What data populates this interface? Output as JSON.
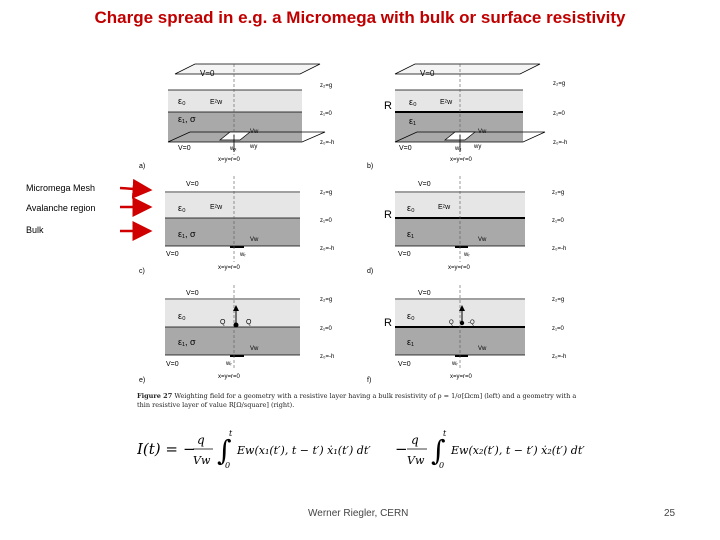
{
  "title": "Charge spread in e.g. a Micromega with bulk or surface resistivity",
  "side_labels": [
    "Micromega Mesh",
    "Avalanche region",
    "Bulk"
  ],
  "footer": {
    "author": "Werner Riegler, CERN",
    "page": "25"
  },
  "caption": {
    "label": "Figure 27",
    "text": "Weighting field for a geometry with a resistive layer having a bulk resistivity of ρ = 1/σ[Ωcm] (left) and a geometry with a thin resistive layer of value R[Ω/square] (right)."
  },
  "panels": {
    "a": {
      "id": "a)",
      "top": "V=0",
      "z2": "z₂=g",
      "eps0": "ε₀",
      "field": "Eᶻw",
      "z1": "z₁=0",
      "eps1": "ε₁, σ",
      "vw": "Vw",
      "wx": "wₓ",
      "wy": "wy",
      "z0": "z₀=-h",
      "bottom": "V=0",
      "origin": "x=y=r=0"
    },
    "b": {
      "id": "b)",
      "top": "V=0",
      "z2": "z₂=g",
      "R": "R",
      "eps0": "ε₀",
      "field": "Eᶻw",
      "z1": "z₁=0",
      "eps1": "ε₁",
      "vw": "Vw",
      "wx": "wₓ",
      "wy": "wy",
      "z0": "z₀=-h",
      "bottom": "V=0",
      "origin": "x=y=r=0"
    },
    "c": {
      "id": "c)",
      "top": "V=0",
      "z2": "z₂=g",
      "eps0": "ε₀",
      "field": "Eᶻw",
      "z1": "z₁=0",
      "eps1": "ε₁, σ",
      "vw": "Vw",
      "w": "wᵣ",
      "z0": "z₀=-h",
      "bottom": "V=0",
      "origin": "x=y=r=0"
    },
    "d": {
      "id": "d)",
      "top": "V=0",
      "z2": "z₂=g",
      "R": "R",
      "eps0": "ε₀",
      "field": "Eᶻw",
      "z1": "z₁=0",
      "eps1": "ε₁",
      "vw": "Vw",
      "w": "wᵣ",
      "z0": "z₀=-h",
      "bottom": "V=0",
      "origin": "x=y=r=0"
    },
    "e": {
      "id": "e)",
      "top": "V=0",
      "z2": "z₂=g",
      "eps0": "ε₀",
      "q": "Q",
      "qneg": "Q",
      "z1": "z₁=0",
      "eps1": "ε₁, σ",
      "vw": "Vw",
      "w": "wᵣ",
      "z0": "z₀=-h",
      "bottom": "V=0",
      "origin": "x=y=r=0"
    },
    "f": {
      "id": "f)",
      "top": "V=0",
      "z2": "z₂=g",
      "R": "R",
      "eps0": "ε₀",
      "q": "Q",
      "qneg": "-Q",
      "z1": "z₁=0",
      "eps1": "ε₁",
      "vw": "Vw",
      "w": "wᵣ",
      "z0": "z₀=-h",
      "bottom": "V=0",
      "origin": "x=y=r=0"
    }
  },
  "formula": {
    "lhs": "I(t) =",
    "minus1": "−",
    "q": "q",
    "vw": "Vw",
    "int_up": "t",
    "int_lo": "0",
    "term1": "Ew(x₁(t′), t − t′) ẋ₁(t′) dt′",
    "minus2": "−",
    "term2": "Ew(x₂(t′), t − t′) ẋ₂(t′) dt′"
  },
  "colors": {
    "title": "#c00000",
    "arrow": "#d00000",
    "gap": "#e6e6e6",
    "bulk": "#a9a9a9"
  }
}
